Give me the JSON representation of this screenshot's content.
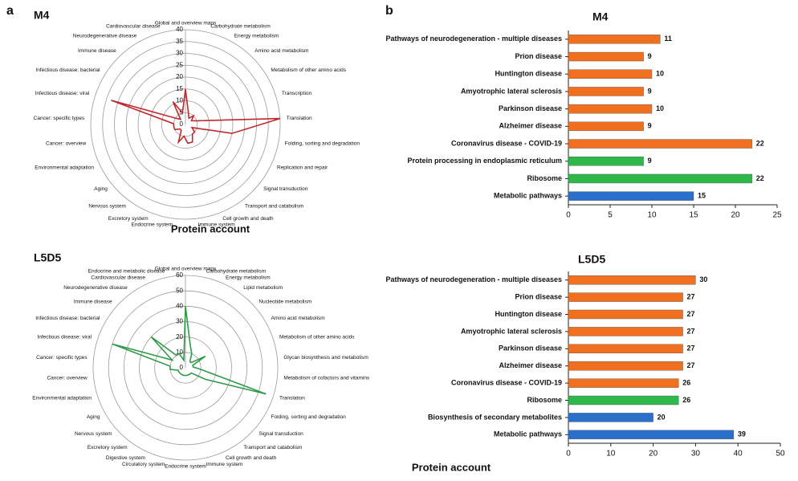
{
  "chart_data": [
    {
      "type": "radar",
      "panel": "a",
      "title": "M4",
      "categories": [
        "Global and overview maps",
        "Carbohydrate metabolism",
        "Energy metabolism",
        "Amino acid metabolism",
        "Metabolism of other amino acids",
        "Transcription",
        "Translation",
        "Folding, sorting and degradation",
        "Replication and repair",
        "Signal transduction",
        "Transport and catabolism",
        "Cell growth and death",
        "Immune system",
        "Endocrine system",
        "Excretory system",
        "Nervous system",
        "Aging",
        "Environmental adaptation",
        "Cancer: overview",
        "Cancer: specific types",
        "Infectious disease: viral",
        "Infectious disease: bacterial",
        "Immune disease",
        "Neurodegenerative disease",
        "Cardiovascular disease"
      ],
      "values": [
        15,
        5,
        3,
        5,
        3,
        5,
        40,
        20,
        3,
        5,
        5,
        8,
        8,
        5,
        8,
        3,
        3,
        5,
        5,
        5,
        33,
        5,
        3,
        11,
        5
      ],
      "color": "#c0282d",
      "ylim": [
        0,
        40
      ],
      "yticks": [
        0,
        5,
        10,
        15,
        20,
        25,
        30,
        35,
        40
      ]
    },
    {
      "type": "bar",
      "panel": "b",
      "title": "M4",
      "categories": [
        "Pathways of neurodegeneration - multiple diseases",
        "Prion disease",
        "Huntington disease",
        "Amyotrophic lateral sclerosis",
        "Parkinson disease",
        "Alzheimer disease",
        "Coronavirus disease - COVID-19",
        "Protein processing in endoplasmic reticulum",
        "Ribosome",
        "Metabolic pathways"
      ],
      "values": [
        11,
        9,
        10,
        9,
        10,
        9,
        22,
        9,
        22,
        15
      ],
      "colors": [
        "#f07020",
        "#f07020",
        "#f07020",
        "#f07020",
        "#f07020",
        "#f07020",
        "#f07020",
        "#2fb84a",
        "#2fb84a",
        "#2a6fc9"
      ],
      "xlim": [
        0,
        25
      ],
      "xticks": [
        0,
        5,
        10,
        15,
        20,
        25
      ],
      "xlabel": "Protein account"
    },
    {
      "type": "radar",
      "title": "L5D5",
      "categories": [
        "Global and overview maps",
        "Carbohydrate metabolism",
        "Energy metabolism",
        "Lipid metabolism",
        "Nucleotide metabolism",
        "Amino acid metabolism",
        "Metabolism of other amino acids",
        "Glycan biosynthesis and metabolism",
        "Metabolism of cofactors and vitamins",
        "Translation",
        "Folding, sorting and degradation",
        "Signal transduction",
        "Transport and catabolism",
        "Cell growth and death",
        "Immune system",
        "Endocrine system",
        "Circulatory system",
        "Digestive system",
        "Excretory system",
        "Nervous system",
        "Aging",
        "Environmental adaptation",
        "Cancer: overview",
        "Cancer: specific types",
        "Infectious disease: viral",
        "Infectious disease: bacterial",
        "Immune disease",
        "Neurodegenerative disease",
        "Cardiovascular disease",
        "Endocrine and metabolic disease"
      ],
      "values": [
        40,
        15,
        10,
        5,
        5,
        15,
        5,
        5,
        10,
        55,
        15,
        5,
        5,
        5,
        5,
        5,
        5,
        5,
        5,
        5,
        5,
        5,
        10,
        10,
        50,
        10,
        30,
        10,
        10,
        5
      ],
      "color": "#2f9a48",
      "ylim": [
        0,
        60
      ],
      "yticks": [
        0,
        10,
        20,
        30,
        40,
        50,
        60
      ]
    },
    {
      "type": "bar",
      "title": "L5D5",
      "categories": [
        "Pathways of neurodegeneration - multiple diseases",
        "Prion disease",
        "Huntington disease",
        "Amyotrophic lateral sclerosis",
        "Parkinson disease",
        "Alzheimer disease",
        "Coronavirus disease - COVID-19",
        "Ribosome",
        "Biosynthesis of secondary metabolites",
        "Metabolic pathways"
      ],
      "values": [
        30,
        27,
        27,
        27,
        27,
        27,
        26,
        26,
        20,
        39
      ],
      "colors": [
        "#f07020",
        "#f07020",
        "#f07020",
        "#f07020",
        "#f07020",
        "#f07020",
        "#f07020",
        "#2fb84a",
        "#2a6fc9",
        "#2a6fc9"
      ],
      "xlim": [
        0,
        50
      ],
      "xticks": [
        0,
        10,
        20,
        30,
        40,
        50
      ],
      "xlabel": "Protein account"
    }
  ]
}
